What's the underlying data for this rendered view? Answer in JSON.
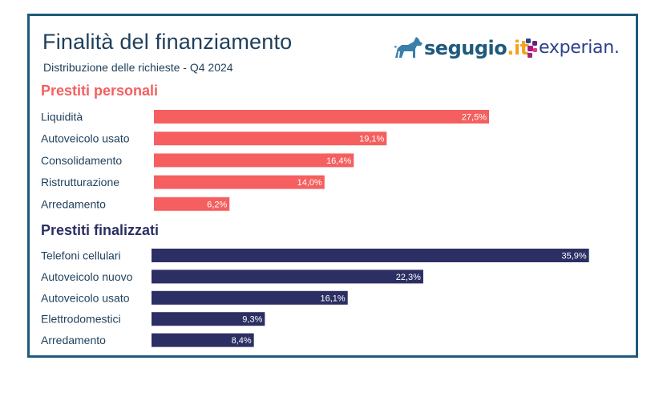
{
  "header": {
    "title": "Finalità del finanziamento",
    "subtitle": "Distribuzione delle richieste - Q4 2024"
  },
  "logos": {
    "segugio_name": "segugio",
    "segugio_suffix": ".it",
    "experian_name": "experian."
  },
  "colors": {
    "personal": "#f55f5f",
    "finalized": "#2c2f63",
    "personal_heading": "#f55f5f",
    "finalized_heading": "#2c2f63",
    "frame": "#1f5a7c"
  },
  "chart_data": [
    {
      "type": "bar",
      "orientation": "horizontal",
      "title": "Prestiti personali",
      "categories": [
        "Liquidità",
        "Autoveicolo usato",
        "Consolidamento",
        "Ristrutturazione",
        "Arredamento"
      ],
      "values": [
        27.5,
        19.1,
        16.4,
        14.0,
        6.2
      ],
      "value_labels": [
        "27,5%",
        "19,1%",
        "16,4%",
        "14,0%",
        "6,2%"
      ],
      "unit": "%",
      "color": "#f55f5f",
      "grid": false,
      "legend": false
    },
    {
      "type": "bar",
      "orientation": "horizontal",
      "title": "Prestiti finalizzati",
      "categories": [
        "Telefoni cellulari",
        "Autoveicolo nuovo",
        "Autoveicolo usato",
        "Elettrodomestici",
        "Arredamento"
      ],
      "values": [
        35.9,
        22.3,
        16.1,
        9.3,
        8.4
      ],
      "value_labels": [
        "35,9%",
        "22,3%",
        "16,1%",
        "9,3%",
        "8,4%"
      ],
      "unit": "%",
      "color": "#2c2f63",
      "grid": false,
      "legend": false
    }
  ]
}
